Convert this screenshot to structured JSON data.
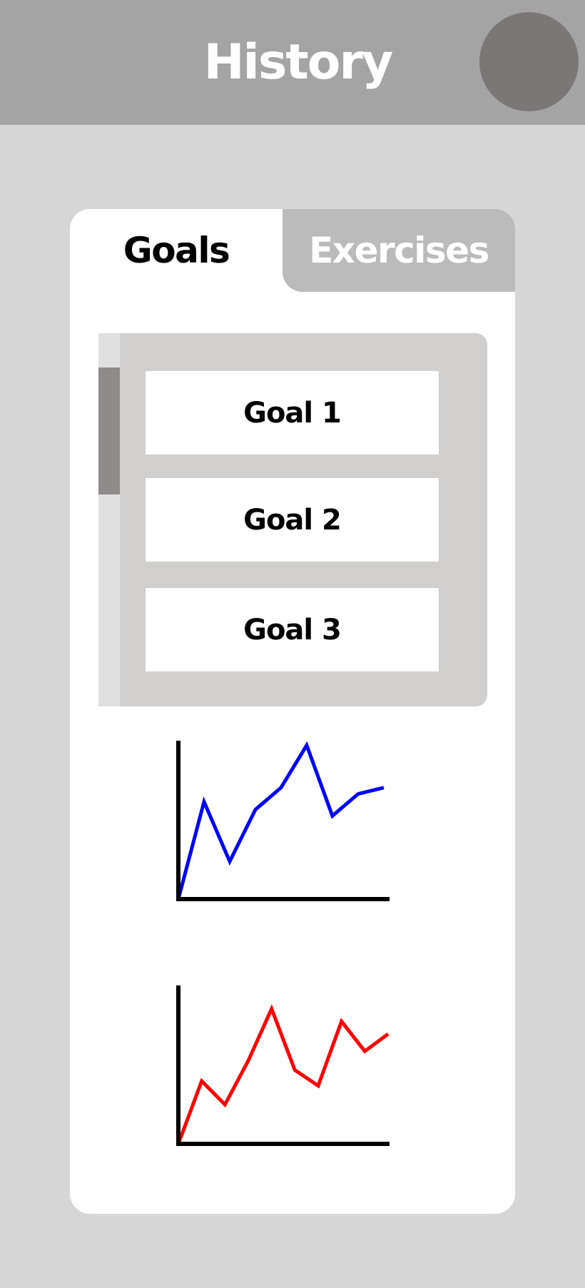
{
  "header": {
    "title": "History"
  },
  "tabs": [
    {
      "label": "Goals",
      "active": true
    },
    {
      "label": "Exercises",
      "active": false
    }
  ],
  "goals": [
    {
      "label": "Goal 1"
    },
    {
      "label": "Goal 2"
    },
    {
      "label": "Goal 3"
    }
  ],
  "colors": {
    "header_bg": "#a4a4a4",
    "page_bg": "#d6d6d6",
    "avatar": "#7b7776",
    "inactive_tab": "#bbbbbb",
    "goal_panel": "#d0cfcd",
    "scrollbar_thumb": "#908b8b"
  },
  "chart_data": [
    {
      "type": "line",
      "title": "",
      "xlabel": "",
      "ylabel": "",
      "grid": false,
      "legend": "none",
      "x": [
        0,
        1,
        2,
        3,
        4,
        5,
        6,
        7,
        8
      ],
      "xlim": [
        0,
        8.17
      ],
      "ylim": [
        0,
        1
      ],
      "series": [
        {
          "color": "#0000ff",
          "values": [
            0.0,
            0.62,
            0.24,
            0.57,
            0.71,
            0.98,
            0.53,
            0.67,
            0.71
          ]
        }
      ]
    },
    {
      "type": "line",
      "title": "",
      "xlabel": "",
      "ylabel": "",
      "grid": false,
      "legend": "none",
      "x": [
        0,
        1,
        2,
        3,
        4,
        5,
        6,
        7,
        8,
        9
      ],
      "xlim": [
        0,
        9
      ],
      "ylim": [
        0,
        1
      ],
      "series": [
        {
          "color": "#ff0000",
          "values": [
            0.0,
            0.4,
            0.25,
            0.53,
            0.86,
            0.47,
            0.37,
            0.78,
            0.59,
            0.7
          ]
        }
      ]
    }
  ]
}
